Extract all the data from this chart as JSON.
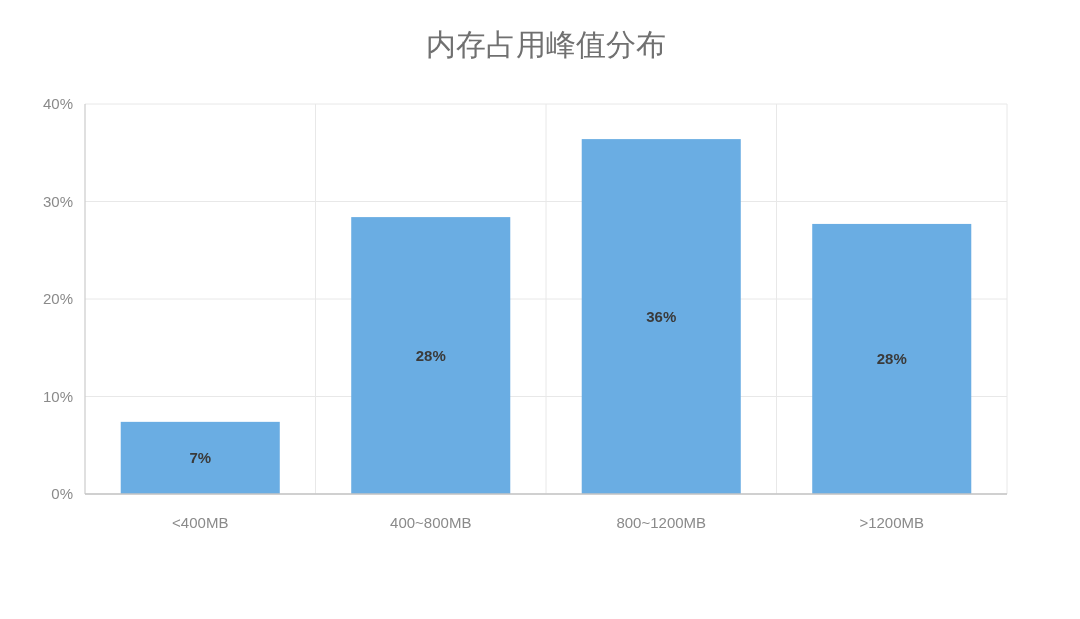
{
  "chart_data": {
    "type": "bar",
    "title": "内存占用峰值分布",
    "categories": [
      "<400MB",
      "400~800MB",
      "800~1200MB",
      ">1200MB"
    ],
    "values": [
      7.4,
      28.4,
      36.4,
      27.7
    ],
    "color": "#6aade3",
    "value_labels": [
      "7%",
      "28%",
      "36%",
      "28%"
    ],
    "ylim": [
      0,
      40
    ],
    "yticks": [
      {
        "value": 0,
        "label": "0%"
      },
      {
        "value": 10,
        "label": "10%"
      },
      {
        "value": 20,
        "label": "20%"
      },
      {
        "value": 30,
        "label": "30%"
      },
      {
        "value": 40,
        "label": "40%"
      }
    ],
    "grid": true
  }
}
